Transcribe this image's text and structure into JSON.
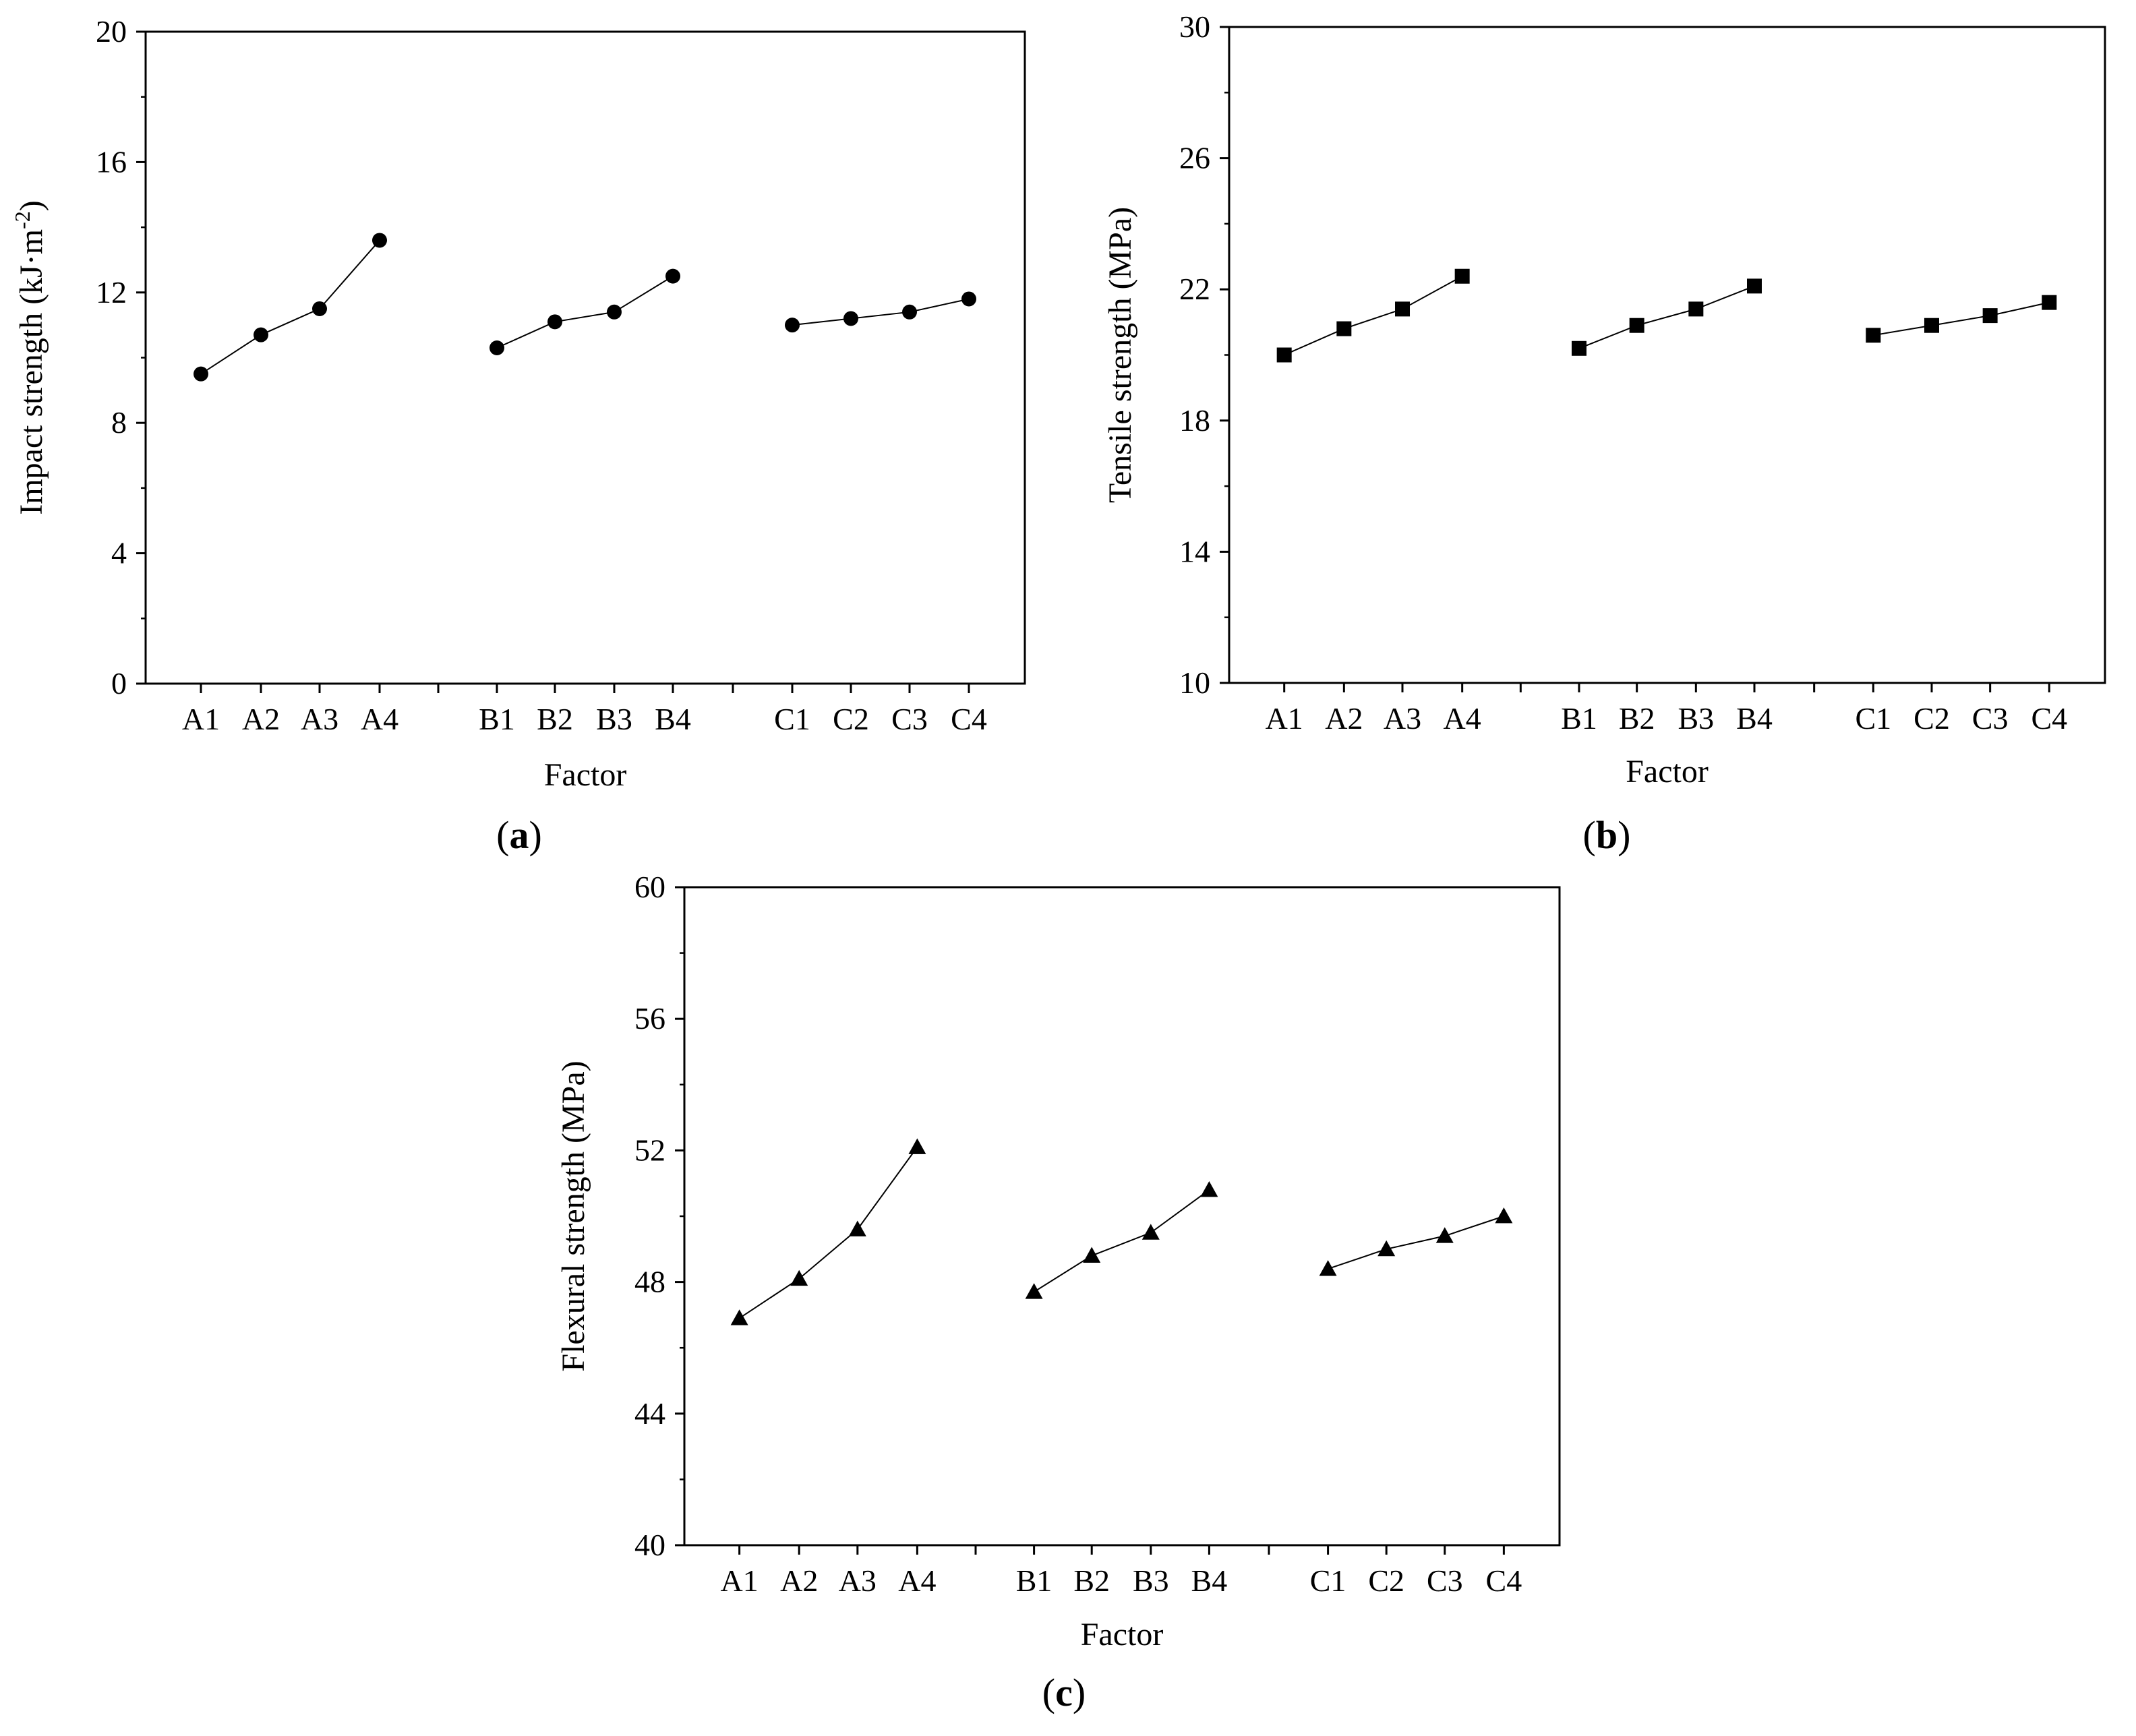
{
  "figure": {
    "panel_labels": {
      "a": "a",
      "b": "b",
      "c": "c"
    }
  },
  "chart_data": [
    {
      "id": "a",
      "type": "line",
      "marker": "circle",
      "ylabel": "Impact strength (kJ·m-2)",
      "ylabel_base": "Impact strength (kJ·m",
      "ylabel_sup": "-2",
      "ylabel_close": ")",
      "xlabel": "Factor",
      "ylim": [
        0,
        20
      ],
      "yticks": [
        0,
        4,
        8,
        12,
        16,
        20
      ],
      "categories": [
        "A1",
        "A2",
        "A3",
        "A4",
        "B1",
        "B2",
        "B3",
        "B4",
        "C1",
        "C2",
        "C3",
        "C4"
      ],
      "groups": [
        {
          "name": "A",
          "categories": [
            "A1",
            "A2",
            "A3",
            "A4"
          ],
          "values": [
            9.5,
            10.7,
            11.5,
            13.6
          ]
        },
        {
          "name": "B",
          "categories": [
            "B1",
            "B2",
            "B3",
            "B4"
          ],
          "values": [
            10.3,
            11.1,
            11.4,
            12.5
          ]
        },
        {
          "name": "C",
          "categories": [
            "C1",
            "C2",
            "C3",
            "C4"
          ],
          "values": [
            11.0,
            11.2,
            11.4,
            11.8
          ]
        }
      ]
    },
    {
      "id": "b",
      "type": "line",
      "marker": "square",
      "ylabel": "Tensile strength (MPa)",
      "xlabel": "Factor",
      "ylim": [
        10,
        30
      ],
      "yticks": [
        10,
        14,
        18,
        22,
        26,
        30
      ],
      "categories": [
        "A1",
        "A2",
        "A3",
        "A4",
        "B1",
        "B2",
        "B3",
        "B4",
        "C1",
        "C2",
        "C3",
        "C4"
      ],
      "groups": [
        {
          "name": "A",
          "categories": [
            "A1",
            "A2",
            "A3",
            "A4"
          ],
          "values": [
            20.0,
            20.8,
            21.4,
            22.4
          ]
        },
        {
          "name": "B",
          "categories": [
            "B1",
            "B2",
            "B3",
            "B4"
          ],
          "values": [
            20.2,
            20.9,
            21.4,
            22.1
          ]
        },
        {
          "name": "C",
          "categories": [
            "C1",
            "C2",
            "C3",
            "C4"
          ],
          "values": [
            20.6,
            20.9,
            21.2,
            21.6
          ]
        }
      ]
    },
    {
      "id": "c",
      "type": "line",
      "marker": "triangle",
      "ylabel": "Flexural strength (MPa)",
      "xlabel": "Factor",
      "ylim": [
        40,
        60
      ],
      "yticks": [
        40,
        44,
        48,
        52,
        56,
        60
      ],
      "categories": [
        "A1",
        "A2",
        "A3",
        "A4",
        "B1",
        "B2",
        "B3",
        "B4",
        "C1",
        "C2",
        "C3",
        "C4"
      ],
      "groups": [
        {
          "name": "A",
          "categories": [
            "A1",
            "A2",
            "A3",
            "A4"
          ],
          "values": [
            46.9,
            48.1,
            49.6,
            52.1
          ]
        },
        {
          "name": "B",
          "categories": [
            "B1",
            "B2",
            "B3",
            "B4"
          ],
          "values": [
            47.7,
            48.8,
            49.5,
            50.8
          ]
        },
        {
          "name": "C",
          "categories": [
            "C1",
            "C2",
            "C3",
            "C4"
          ],
          "values": [
            48.4,
            49.0,
            49.4,
            50.0
          ]
        }
      ]
    }
  ]
}
